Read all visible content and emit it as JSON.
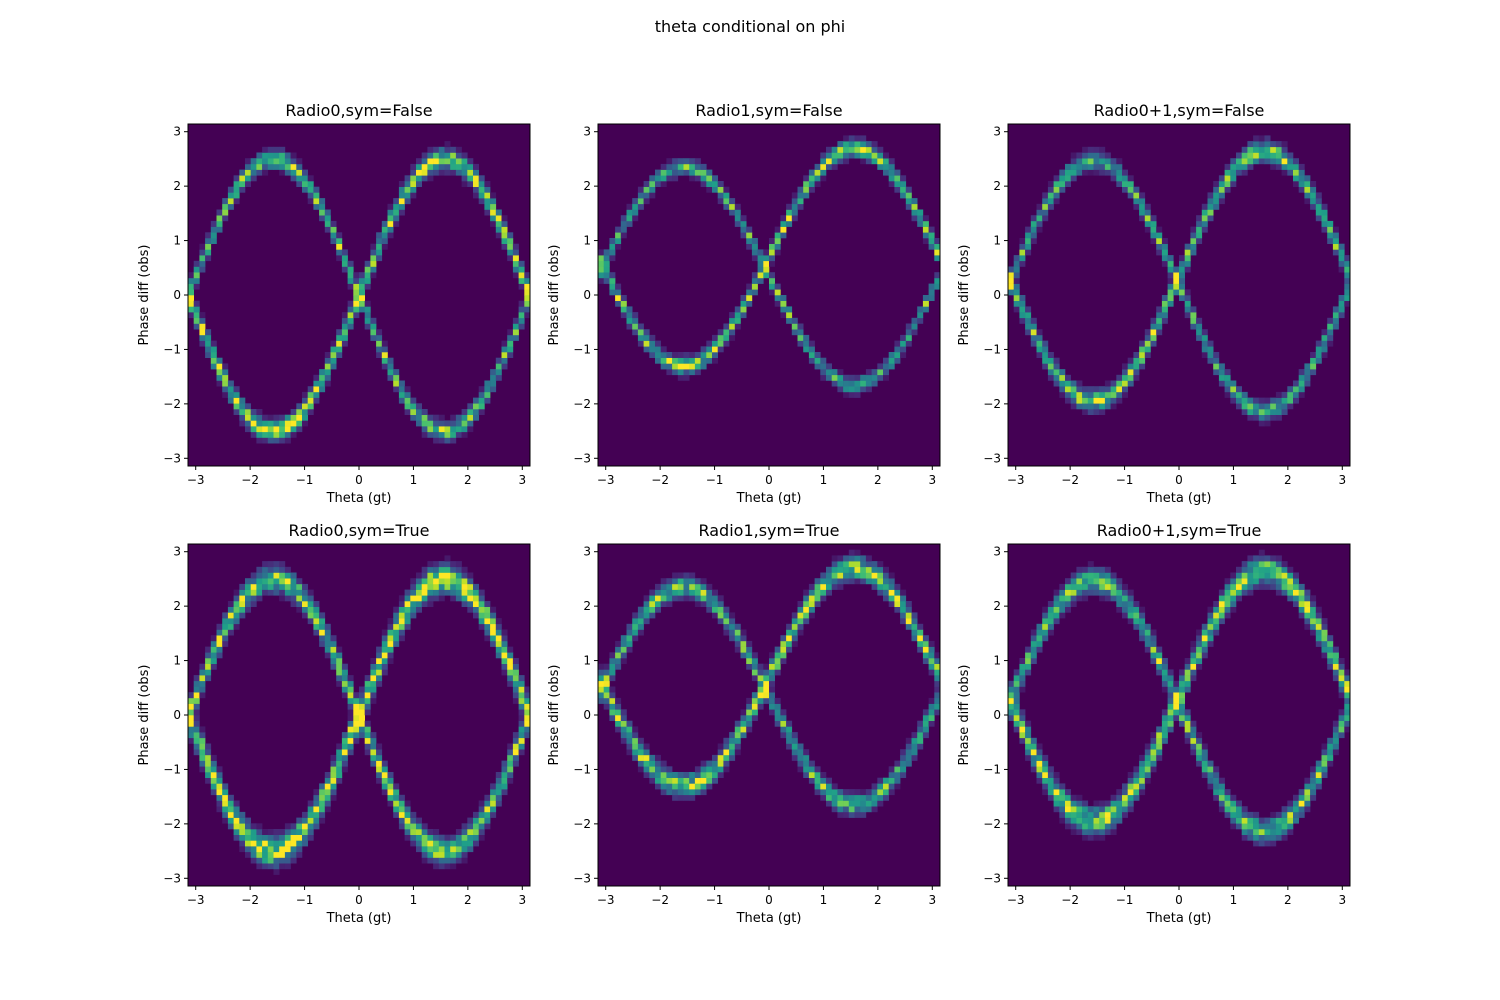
{
  "figure": {
    "title": "theta conditional on phi"
  },
  "colors": {
    "background": "#440154",
    "colormap": [
      "#440154",
      "#482878",
      "#3e4a89",
      "#31688e",
      "#26828e",
      "#1f9e89",
      "#35b779",
      "#6ece58",
      "#b5de2b",
      "#fde725"
    ]
  },
  "chart_data": [
    {
      "type": "heatmap",
      "title": "Radio0,sym=False",
      "xlabel": "Theta (gt)",
      "ylabel": "Phase diff (obs)",
      "xlim": [
        -3.14159,
        3.14159
      ],
      "ylim": [
        -3.14159,
        3.14159
      ],
      "xticks": [
        -3,
        -2,
        -1,
        0,
        1,
        2,
        3
      ],
      "yticks": [
        -3,
        -2,
        -1,
        0,
        1,
        2,
        3
      ],
      "xtick_labels": [
        "−3",
        "−2",
        "−1",
        "0",
        "1",
        "2",
        "3"
      ],
      "ytick_labels": [
        "−3",
        "−2",
        "−1",
        "0",
        "1",
        "2",
        "3"
      ],
      "curve_amplitude": 2.5,
      "curve_phase": 0.0,
      "band_width": 0.12,
      "peak_intensity": 0.85
    },
    {
      "type": "heatmap",
      "title": "Radio1,sym=False",
      "xlabel": "Theta (gt)",
      "ylabel": "Phase diff (obs)",
      "xlim": [
        -3.14159,
        3.14159
      ],
      "ylim": [
        -3.14159,
        3.14159
      ],
      "xticks": [
        -3,
        -2,
        -1,
        0,
        1,
        2,
        3
      ],
      "yticks": [
        -3,
        -2,
        -1,
        0,
        1,
        2,
        3
      ],
      "xtick_labels": [
        "−3",
        "−2",
        "−1",
        "0",
        "1",
        "2",
        "3"
      ],
      "ytick_labels": [
        "−3",
        "−2",
        "−1",
        "0",
        "1",
        "2",
        "3"
      ],
      "curve_amplitude": 2.0,
      "curve_phase": 0.7,
      "band_width": 0.1,
      "peak_intensity": 0.75
    },
    {
      "type": "heatmap",
      "title": "Radio0+1,sym=False",
      "xlabel": "Theta (gt)",
      "ylabel": "Phase diff (obs)",
      "xlim": [
        -3.14159,
        3.14159
      ],
      "ylim": [
        -3.14159,
        3.14159
      ],
      "xticks": [
        -3,
        -2,
        -1,
        0,
        1,
        2,
        3
      ],
      "yticks": [
        -3,
        -2,
        -1,
        0,
        1,
        2,
        3
      ],
      "xtick_labels": [
        "−3",
        "−2",
        "−1",
        "0",
        "1",
        "2",
        "3"
      ],
      "ytick_labels": [
        "−3",
        "−2",
        "−1",
        "0",
        "1",
        "2",
        "3"
      ],
      "curve_amplitude": 2.3,
      "curve_phase": 0.35,
      "band_width": 0.12,
      "peak_intensity": 0.75
    },
    {
      "type": "heatmap",
      "title": "Radio0,sym=True",
      "xlabel": "Theta (gt)",
      "ylabel": "Phase diff (obs)",
      "xlim": [
        -3.14159,
        3.14159
      ],
      "ylim": [
        -3.14159,
        3.14159
      ],
      "xticks": [
        -3,
        -2,
        -1,
        0,
        1,
        2,
        3
      ],
      "yticks": [
        -3,
        -2,
        -1,
        0,
        1,
        2,
        3
      ],
      "xtick_labels": [
        "−3",
        "−2",
        "−1",
        "0",
        "1",
        "2",
        "3"
      ],
      "ytick_labels": [
        "−3",
        "−2",
        "−1",
        "0",
        "1",
        "2",
        "3"
      ],
      "curve_amplitude": 2.5,
      "curve_phase": 0.0,
      "band_width": 0.16,
      "peak_intensity": 0.95
    },
    {
      "type": "heatmap",
      "title": "Radio1,sym=True",
      "xlabel": "Theta (gt)",
      "ylabel": "Phase diff (obs)",
      "xlim": [
        -3.14159,
        3.14159
      ],
      "ylim": [
        -3.14159,
        3.14159
      ],
      "xticks": [
        -3,
        -2,
        -1,
        0,
        1,
        2,
        3
      ],
      "yticks": [
        -3,
        -2,
        -1,
        0,
        1,
        2,
        3
      ],
      "xtick_labels": [
        "−3",
        "−2",
        "−1",
        "0",
        "1",
        "2",
        "3"
      ],
      "ytick_labels": [
        "−3",
        "−2",
        "−1",
        "0",
        "1",
        "2",
        "3"
      ],
      "curve_amplitude": 2.0,
      "curve_phase": 0.7,
      "band_width": 0.13,
      "peak_intensity": 0.8
    },
    {
      "type": "heatmap",
      "title": "Radio0+1,sym=True",
      "xlabel": "Theta (gt)",
      "ylabel": "Phase diff (obs)",
      "xlim": [
        -3.14159,
        3.14159
      ],
      "ylim": [
        -3.14159,
        3.14159
      ],
      "xticks": [
        -3,
        -2,
        -1,
        0,
        1,
        2,
        3
      ],
      "yticks": [
        -3,
        -2,
        -1,
        0,
        1,
        2,
        3
      ],
      "xtick_labels": [
        "−3",
        "−2",
        "−1",
        "0",
        "1",
        "2",
        "3"
      ],
      "ytick_labels": [
        "−3",
        "−2",
        "−1",
        "0",
        "1",
        "2",
        "3"
      ],
      "curve_amplitude": 2.3,
      "curve_phase": 0.35,
      "band_width": 0.15,
      "peak_intensity": 0.85
    }
  ]
}
